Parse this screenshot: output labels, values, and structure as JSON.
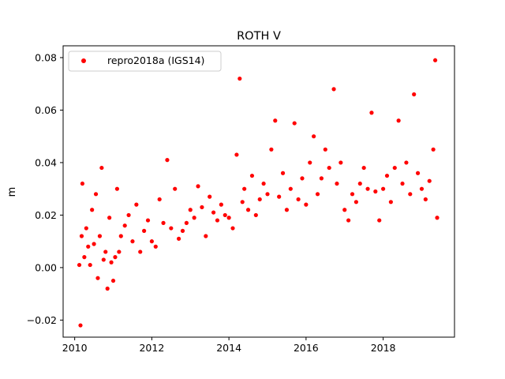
{
  "chart_data": {
    "type": "scatter",
    "title": "ROTH V",
    "xlabel": "",
    "ylabel": "m",
    "xlim": [
      2009.7,
      2019.85
    ],
    "ylim": [
      -0.0265,
      0.0845
    ],
    "x_ticks": [
      2010,
      2012,
      2014,
      2016,
      2018
    ],
    "x_tick_labels": [
      "2010",
      "2012",
      "2014",
      "2016",
      "2018"
    ],
    "y_ticks": [
      -0.02,
      0.0,
      0.02,
      0.04,
      0.06,
      0.08
    ],
    "y_tick_labels": [
      "−0.02",
      "0.00",
      "0.02",
      "0.04",
      "0.06",
      "0.08"
    ],
    "grid": false,
    "legend_position": "top-left",
    "series": [
      {
        "name": "repro2018a (IGS14)",
        "color": "#ff0000",
        "marker": "circle",
        "x": [
          2010.12,
          2010.15,
          2010.18,
          2010.2,
          2010.25,
          2010.3,
          2010.35,
          2010.4,
          2010.45,
          2010.5,
          2010.55,
          2010.6,
          2010.65,
          2010.7,
          2010.75,
          2010.8,
          2010.85,
          2010.9,
          2010.95,
          2011.0,
          2011.05,
          2011.1,
          2011.15,
          2011.2,
          2011.3,
          2011.4,
          2011.5,
          2011.6,
          2011.7,
          2011.8,
          2011.9,
          2012.0,
          2012.1,
          2012.2,
          2012.3,
          2012.4,
          2012.5,
          2012.6,
          2012.7,
          2012.8,
          2012.9,
          2013.0,
          2013.1,
          2013.2,
          2013.3,
          2013.4,
          2013.5,
          2013.6,
          2013.7,
          2013.8,
          2013.9,
          2014.0,
          2014.1,
          2014.2,
          2014.28,
          2014.35,
          2014.4,
          2014.5,
          2014.6,
          2014.7,
          2014.8,
          2014.9,
          2015.0,
          2015.1,
          2015.2,
          2015.3,
          2015.4,
          2015.5,
          2015.6,
          2015.7,
          2015.8,
          2015.9,
          2016.0,
          2016.1,
          2016.2,
          2016.3,
          2016.4,
          2016.5,
          2016.6,
          2016.72,
          2016.8,
          2016.9,
          2017.0,
          2017.1,
          2017.2,
          2017.3,
          2017.4,
          2017.5,
          2017.6,
          2017.7,
          2017.8,
          2017.9,
          2018.0,
          2018.1,
          2018.2,
          2018.3,
          2018.4,
          2018.5,
          2018.6,
          2018.7,
          2018.8,
          2018.9,
          2019.0,
          2019.1,
          2019.2,
          2019.3,
          2019.35,
          2019.4
        ],
        "y": [
          0.001,
          -0.022,
          0.012,
          0.032,
          0.004,
          0.015,
          0.008,
          0.001,
          0.022,
          0.009,
          0.028,
          -0.004,
          0.012,
          0.038,
          0.003,
          0.006,
          -0.008,
          0.019,
          0.002,
          -0.005,
          0.004,
          0.03,
          0.006,
          0.012,
          0.016,
          0.02,
          0.01,
          0.024,
          0.006,
          0.014,
          0.018,
          0.01,
          0.008,
          0.026,
          0.017,
          0.041,
          0.015,
          0.03,
          0.011,
          0.014,
          0.017,
          0.022,
          0.019,
          0.031,
          0.023,
          0.012,
          0.027,
          0.021,
          0.018,
          0.024,
          0.02,
          0.019,
          0.015,
          0.043,
          0.072,
          0.025,
          0.03,
          0.022,
          0.035,
          0.02,
          0.026,
          0.032,
          0.028,
          0.045,
          0.056,
          0.027,
          0.036,
          0.022,
          0.03,
          0.055,
          0.026,
          0.034,
          0.024,
          0.04,
          0.05,
          0.028,
          0.034,
          0.045,
          0.038,
          0.068,
          0.032,
          0.04,
          0.022,
          0.018,
          0.028,
          0.025,
          0.032,
          0.038,
          0.03,
          0.059,
          0.029,
          0.018,
          0.03,
          0.035,
          0.025,
          0.038,
          0.056,
          0.032,
          0.04,
          0.028,
          0.066,
          0.036,
          0.03,
          0.026,
          0.033,
          0.045,
          0.079,
          0.019
        ]
      }
    ]
  }
}
